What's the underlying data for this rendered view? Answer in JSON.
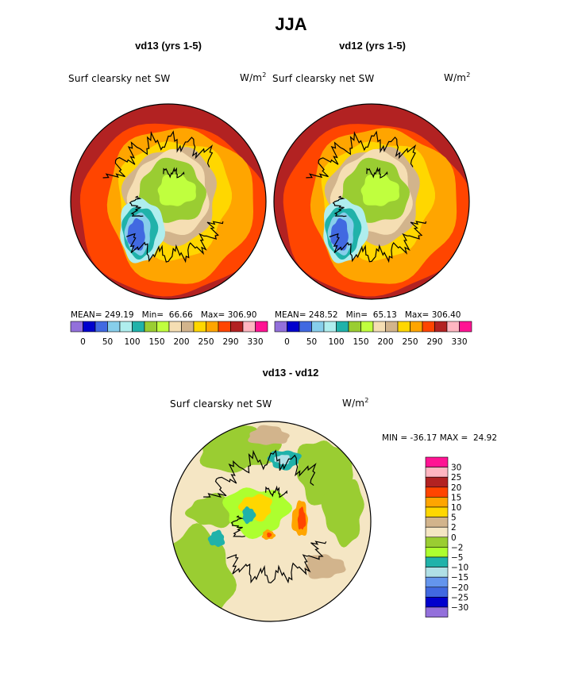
{
  "page": {
    "title": "JJA"
  },
  "colors": {
    "abs_palette": [
      "#9370db",
      "#0000cd",
      "#4169e1",
      "#87ceeb",
      "#afeeee",
      "#20b2aa",
      "#9acd32",
      "#c0ff3e",
      "#f5deb3",
      "#d2b48c",
      "#ffd700",
      "#ffa500",
      "#ff4500",
      "#b22222",
      "#ffb6c1",
      "#ff1493"
    ],
    "diff_palette": [
      "#9370db",
      "#0000cd",
      "#4169e1",
      "#6495ed",
      "#b0e0e6",
      "#20b2aa",
      "#adff2f",
      "#9acd32",
      "#f5e6c4",
      "#d2b48c",
      "#ffd700",
      "#ffa500",
      "#ff4500",
      "#b22222",
      "#ffb6c1",
      "#ff1493"
    ]
  },
  "panels": [
    {
      "heading": "vd13 (yrs 1-5)",
      "variable": "Surf clearsky net SW",
      "unit": "W/m",
      "unit_power": "2",
      "stats": {
        "mean_label": "MEAN=",
        "mean": "249.19",
        "min_label": "Min=",
        "min": "66.66",
        "max_label": "Max=",
        "max": "306.90"
      }
    },
    {
      "heading": "vd12 (yrs 1-5)",
      "variable": "Surf clearsky net SW",
      "unit": "W/m",
      "unit_power": "2",
      "stats": {
        "mean_label": "MEAN=",
        "mean": "248.52",
        "min_label": "Min=",
        "min": "65.13",
        "max_label": "Max=",
        "max": "306.40"
      }
    },
    {
      "heading": "vd13 - vd12",
      "variable": "Surf clearsky net SW",
      "unit": "W/m",
      "unit_power": "2",
      "stats": {
        "min_label": "MIN =",
        "min": "-36.17",
        "max_label": "MAX =",
        "max": "24.92"
      }
    }
  ],
  "chart_data": [
    {
      "type": "heatmap",
      "title": "vd13 (yrs 1-5)",
      "subtitle": "Surf clearsky net SW",
      "units": "W/m2",
      "projection": "north polar stereographic",
      "stats": {
        "mean": 249.19,
        "min": 66.66,
        "max": 306.9
      },
      "colorbar_labels": [
        "0",
        "50",
        "100",
        "150",
        "200",
        "250",
        "290",
        "330"
      ],
      "colorbar_bins": 16
    },
    {
      "type": "heatmap",
      "title": "vd12 (yrs 1-5)",
      "subtitle": "Surf clearsky net SW",
      "units": "W/m2",
      "projection": "north polar stereographic",
      "stats": {
        "mean": 248.52,
        "min": 65.13,
        "max": 306.4
      },
      "colorbar_labels": [
        "0",
        "50",
        "100",
        "150",
        "200",
        "250",
        "290",
        "330"
      ],
      "colorbar_bins": 16
    },
    {
      "type": "heatmap",
      "title": "vd13 - vd12",
      "subtitle": "Surf clearsky net SW",
      "units": "W/m2",
      "projection": "north polar stereographic",
      "stats": {
        "min": -36.17,
        "max": 24.92
      },
      "colorbar_labels": [
        "30",
        "25",
        "20",
        "15",
        "10",
        "5",
        "2",
        "0",
        "−2",
        "−5",
        "−10",
        "−15",
        "−20",
        "−25",
        "−30"
      ],
      "colorbar_bins": 16
    }
  ]
}
